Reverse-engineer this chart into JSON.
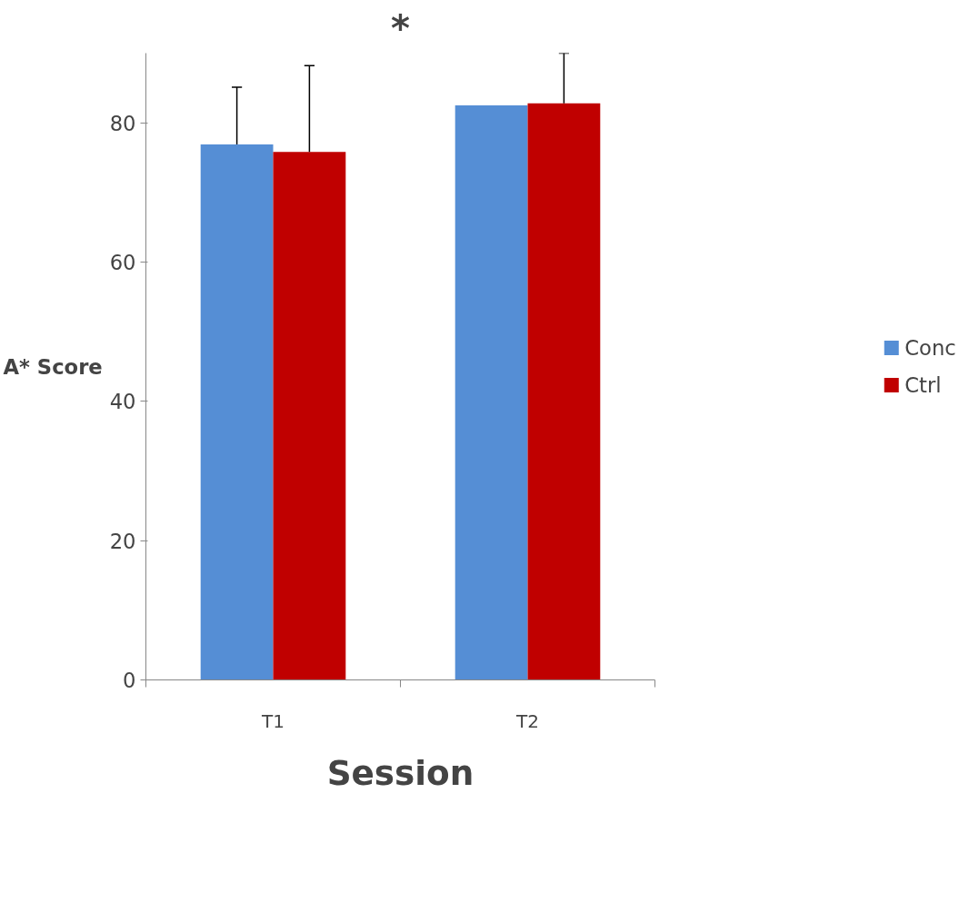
{
  "chart_data": {
    "type": "bar",
    "xlabel": "Session",
    "ylabel": "A* Score",
    "categories": [
      "T1",
      "T2"
    ],
    "series": [
      {
        "name": "Conc",
        "color": "#558ed5",
        "values": [
          76.9,
          82.5
        ],
        "errors": [
          8.2,
          null
        ]
      },
      {
        "name": "Ctrl",
        "color": "#c00000",
        "values": [
          75.8,
          82.8
        ],
        "errors": [
          12.4,
          7.2
        ]
      }
    ],
    "ylim": [
      0,
      90
    ],
    "yticks": [
      0,
      20,
      40,
      60,
      80
    ],
    "grid": false,
    "legend": "right",
    "annotations": [
      "*"
    ]
  }
}
